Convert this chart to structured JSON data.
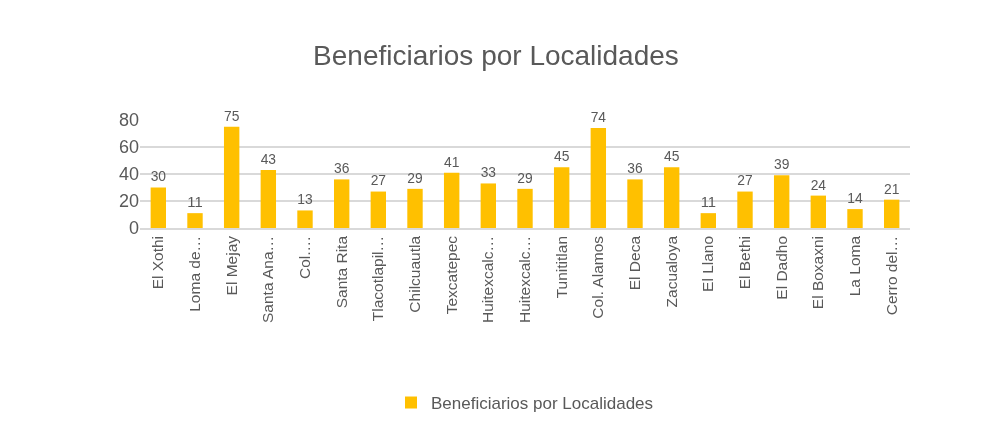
{
  "chart_data": {
    "type": "bar",
    "title": "Beneficiarios por Localidades",
    "categories": [
      "El Xothi",
      "Loma de…",
      "El Mejay",
      "Santa Ana…",
      "Col.…",
      "Santa Rita",
      "Tlacotlapil…",
      "Chilcuautla",
      "Texcatepec",
      "Huitexcalc…",
      "Huitexcalc…",
      "Tunititlan",
      "Col. Alamos",
      "El Deca",
      "Zacualoya",
      "El Llano",
      "El Bethi",
      "El Dadho",
      "El Boxaxni",
      "La Loma",
      "Cerro del…"
    ],
    "series": [
      {
        "name": "Beneficiarios por Localidades",
        "color": "#ffc000",
        "values": [
          30,
          11,
          75,
          43,
          13,
          36,
          27,
          29,
          41,
          33,
          29,
          45,
          74,
          36,
          45,
          11,
          27,
          39,
          24,
          14,
          21
        ]
      }
    ],
    "ylim": [
      0,
      80
    ],
    "yticks": [
      0,
      20,
      40,
      60,
      80
    ],
    "grid": "y",
    "legend": "bottom",
    "data_labels": true
  }
}
